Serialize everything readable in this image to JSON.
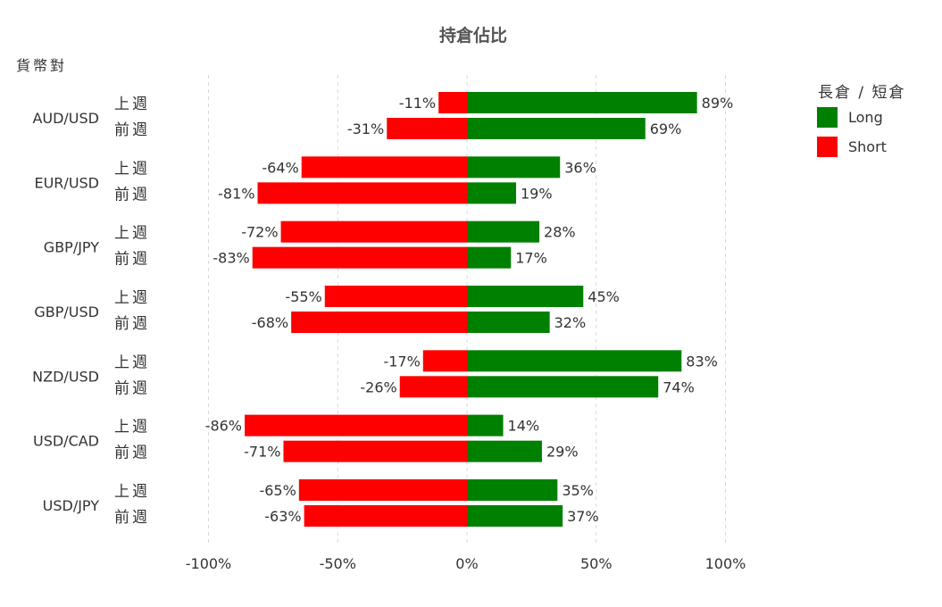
{
  "chart_data": {
    "type": "bar",
    "orientation": "horizontal",
    "stacked": "diverging",
    "title": "持倉佔比",
    "ylabel": "貨幣對",
    "categories": [
      "AUD/USD",
      "EUR/USD",
      "GBP/JPY",
      "GBP/USD",
      "NZD/USD",
      "USD/CAD",
      "USD/JPY"
    ],
    "periods": [
      "上週",
      "前週"
    ],
    "series": [
      {
        "name": "Long",
        "color": "#008000",
        "values": {
          "上週": [
            89,
            36,
            28,
            45,
            83,
            14,
            35
          ],
          "前週": [
            69,
            19,
            17,
            32,
            74,
            29,
            37
          ]
        }
      },
      {
        "name": "Short",
        "color": "#ff0000",
        "values": {
          "上週": [
            -11,
            -64,
            -72,
            -55,
            -17,
            -86,
            -65
          ],
          "前週": [
            -31,
            -81,
            -83,
            -68,
            -26,
            -71,
            -63
          ]
        }
      }
    ],
    "xlim": [
      -100,
      100
    ],
    "xticks": [
      -100,
      -50,
      0,
      50,
      100
    ],
    "xtick_labels": [
      "-100%",
      "-50%",
      "0%",
      "50%",
      "100%"
    ],
    "value_suffix": "%",
    "grid": "vertical-dashed",
    "legend": {
      "title": "長倉 / 短倉",
      "placement": "top-right",
      "entries": [
        "Long",
        "Short"
      ]
    }
  }
}
